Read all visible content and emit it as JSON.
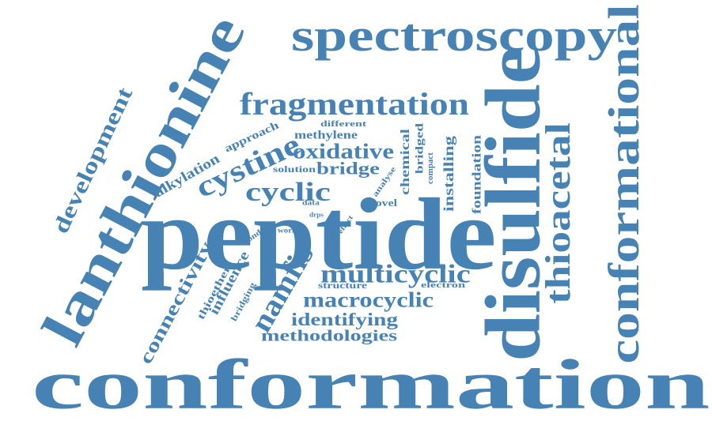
{
  "word_color": "#4682b4",
  "background": "#ffffff",
  "words": {
    "conformation": "conformation",
    "peptide": "peptide",
    "lanthionine": "lanthionine",
    "spectroscopy": "spectroscopy",
    "disulfide": "disulfide",
    "conformational": "conformational",
    "fragmentation": "fragmentation",
    "thioacetal": "thioacetal",
    "cystine": "cystine",
    "cyclic": "cyclic",
    "oxidative": "oxidative",
    "multicyclic": "multicyclic",
    "macrocyclic": "macrocyclic",
    "namfis": "namfis",
    "identifying": "identifying",
    "methodologies": "methodologies",
    "development": "development",
    "connectivity": "connectivity",
    "bridge": "bridge",
    "alkylation": "alkylation",
    "chemical": "chemical",
    "bridged": "bridged",
    "installing": "installing",
    "foundation": "foundation",
    "influence": "influence",
    "thioether": "thioether",
    "approach": "approach",
    "methylene": "methylene",
    "different": "different",
    "solution": "solution",
    "compact": "compact",
    "analyse": "analyse",
    "novel": "novel",
    "structure": "structure",
    "electron": "electron",
    "bridging": "bridging",
    "bond": "bond",
    "work": "work",
    "data": "data",
    "drps": "drps",
    "effect": "effect"
  }
}
